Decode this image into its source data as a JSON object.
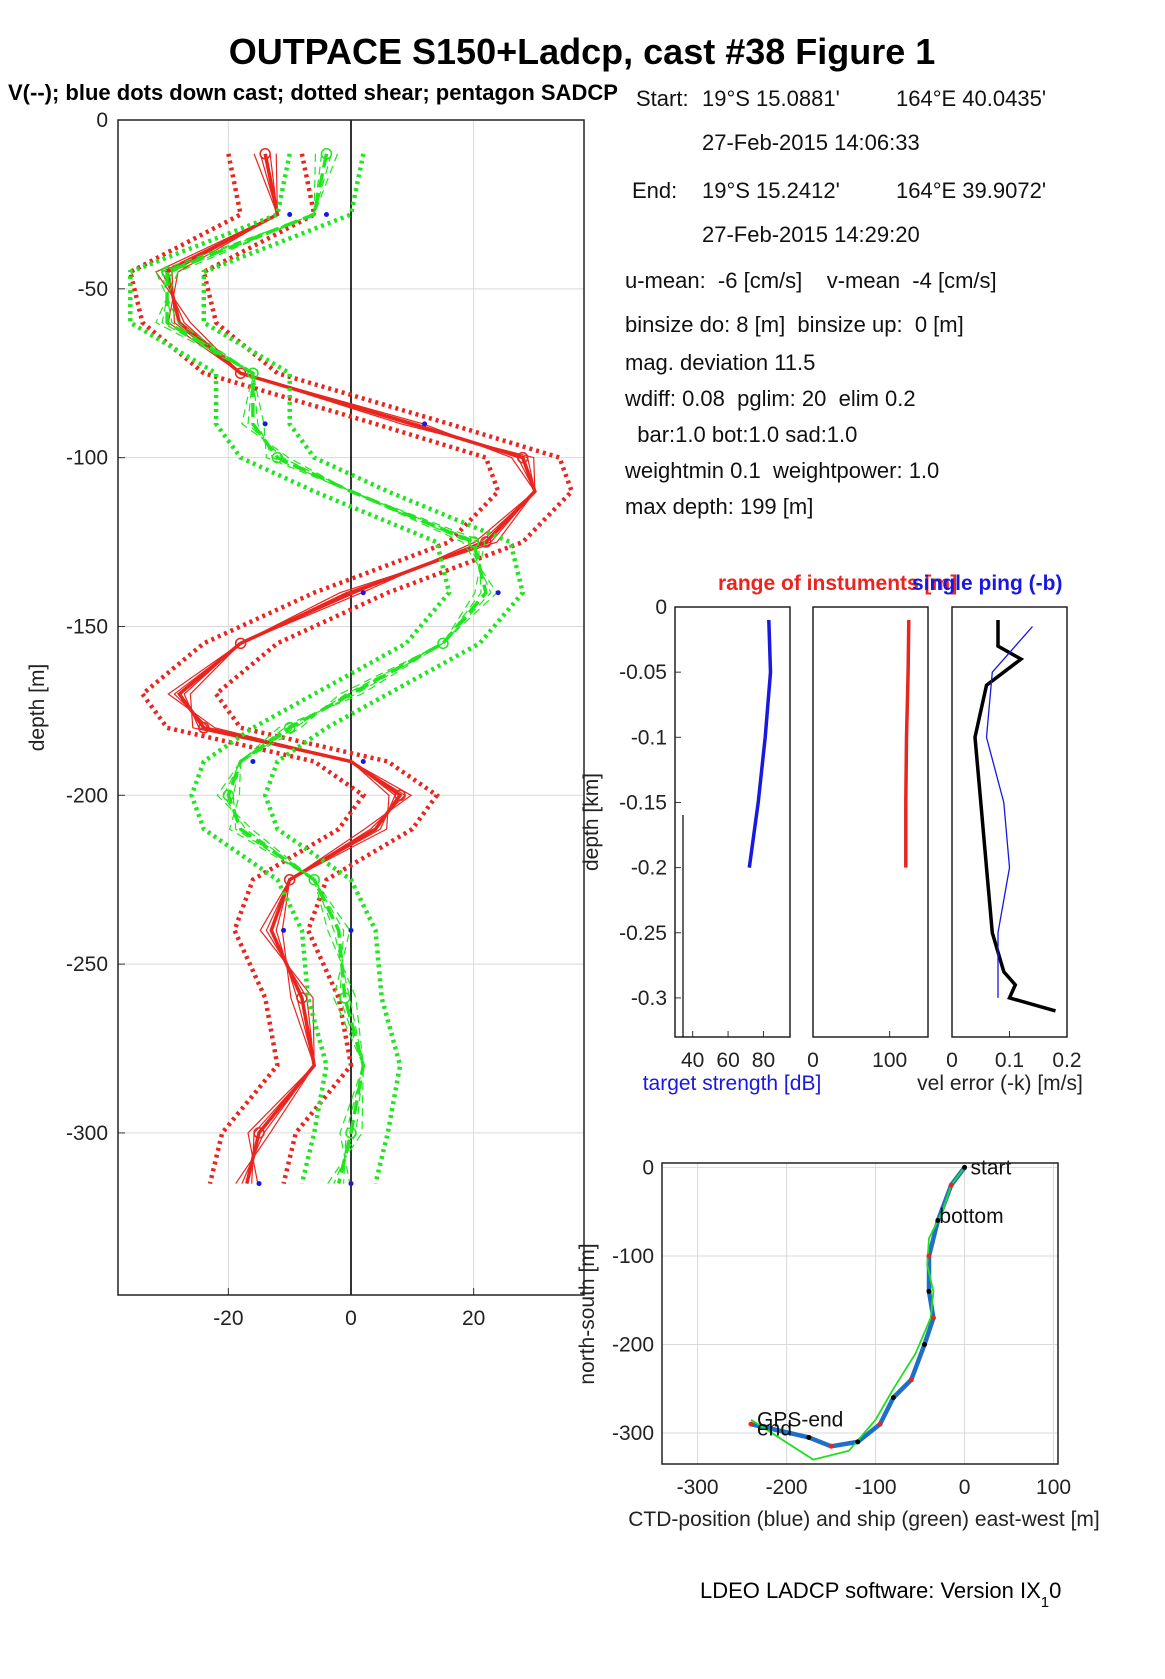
{
  "figure": {
    "title": "OUTPACE S150+Ladcp, cast #38  Figure 1",
    "subtitle": "V(--); blue dots down cast; dotted shear; pentagon SADCP",
    "footer": "LDEO LADCP software: Version IX",
    "footer_sub": "1",
    "footer_tail": "0"
  },
  "info": {
    "start_label": "Start:",
    "start_lat": "19°S 15.0881'",
    "start_lon": "164°E 40.0435'",
    "start_time": "27-Feb-2015 14:06:33",
    "end_label": "End:",
    "end_lat": "19°S 15.2412'",
    "end_lon": "164°E 39.9072'",
    "end_time": "27-Feb-2015 14:29:20",
    "means": "u-mean:  -6 [cm/s]    v-mean  -4 [cm/s]",
    "binsize": "binsize do: 8 [m]  binsize up:  0 [m]",
    "magdev": "mag. deviation 11.5",
    "wdiff": "wdiff: 0.08  pglim: 20  elim 0.2",
    "bar": "  bar:1.0 bot:1.0 sad:1.0",
    "weight": "weightmin 0.1  weightpower: 1.0",
    "maxdepth": "max depth: 199 [m]"
  },
  "colors": {
    "u": "#e8251f",
    "v": "#1fe61f",
    "downcast": "#1818e0",
    "ctd": "#1f6fc8",
    "ship": "#22dd22",
    "grid": "#d9d9d9"
  },
  "chart_data": [
    {
      "type": "line",
      "id": "profile",
      "ylabel": "depth [m]",
      "xlim": [
        -38,
        38
      ],
      "ylim": [
        -348,
        0
      ],
      "xticks": [
        -20,
        0,
        20
      ],
      "yticks": [
        0,
        -50,
        -100,
        -150,
        -200,
        -250,
        -300
      ],
      "grid": true,
      "series": [
        {
          "name": "u",
          "color_key": "u",
          "depth": [
            -10,
            -28,
            -45,
            -60,
            -75,
            -90,
            -100,
            -110,
            -125,
            -140,
            -155,
            -170,
            -180,
            -190,
            -200,
            -210,
            -225,
            -240,
            -260,
            -280,
            -300,
            -315
          ],
          "values": [
            -14,
            -12,
            -30,
            -28,
            -18,
            10,
            28,
            30,
            22,
            0,
            -18,
            -28,
            -24,
            0,
            8,
            4,
            -10,
            -13,
            -8,
            -6,
            -15,
            -17
          ]
        },
        {
          "name": "v",
          "color_key": "v",
          "depth": [
            -10,
            -28,
            -45,
            -60,
            -75,
            -90,
            -100,
            -110,
            -125,
            -140,
            -155,
            -170,
            -180,
            -190,
            -200,
            -210,
            -225,
            -240,
            -260,
            -280,
            -300,
            -315
          ],
          "values": [
            -4,
            -6,
            -30,
            -30,
            -16,
            -16,
            -12,
            0,
            20,
            22,
            15,
            0,
            -10,
            -18,
            -20,
            -18,
            -6,
            -2,
            -1,
            2,
            0,
            -2
          ]
        }
      ]
    },
    {
      "type": "line",
      "id": "target-strength",
      "xlabel": "target strength [dB]",
      "ylabel": "depth [km]",
      "xlim": [
        30,
        95
      ],
      "ylim": [
        -0.33,
        0
      ],
      "xticks": [
        40,
        60,
        80
      ],
      "yticks": [
        0,
        -0.05,
        -0.1,
        -0.15,
        -0.2,
        -0.25,
        -0.3
      ],
      "series": [
        {
          "name": "",
          "color_key": "downcast",
          "depth": [
            -0.01,
            -0.05,
            -0.1,
            -0.15,
            -0.2
          ],
          "values": [
            83,
            84,
            81,
            77,
            72
          ]
        }
      ]
    },
    {
      "type": "line",
      "id": "range",
      "title": "range of instuments [m]",
      "xlim": [
        0,
        150
      ],
      "ylim": [
        -0.33,
        0
      ],
      "xticks": [
        0,
        100
      ],
      "series": [
        {
          "name": "",
          "color_key": "u",
          "depth": [
            -0.01,
            -0.05,
            -0.1,
            -0.15,
            -0.2
          ],
          "values": [
            125,
            124,
            122,
            121,
            121
          ]
        }
      ]
    },
    {
      "type": "line",
      "id": "vel-error",
      "title": "single ping (-b)",
      "xlabel": "vel error (-k) [m/s]",
      "xlim": [
        0,
        0.2
      ],
      "ylim": [
        -0.33,
        0
      ],
      "xticks": [
        0,
        0.1,
        0.2
      ],
      "series": [
        {
          "name": "",
          "color_key": "black",
          "depth": [
            -0.01,
            -0.03,
            -0.04,
            -0.06,
            -0.1,
            -0.15,
            -0.2,
            -0.25,
            -0.28,
            -0.29,
            -0.3,
            -0.31
          ],
          "values": [
            0.08,
            0.08,
            0.12,
            0.06,
            0.04,
            0.05,
            0.06,
            0.07,
            0.09,
            0.11,
            0.1,
            0.18
          ]
        },
        {
          "name": "",
          "color_key": "downcast",
          "depth": [
            -0.015,
            -0.05,
            -0.1,
            -0.15,
            -0.2,
            -0.25,
            -0.3
          ],
          "values": [
            0.14,
            0.07,
            0.06,
            0.09,
            0.1,
            0.08,
            0.08
          ]
        }
      ]
    },
    {
      "type": "line",
      "id": "track",
      "xlabel": "CTD-position (blue) and ship (green) east-west [m]",
      "ylabel": "north-south [m]",
      "xlim": [
        -340,
        105
      ],
      "ylim": [
        -335,
        5
      ],
      "xticks": [
        -300,
        -200,
        -100,
        0,
        100
      ],
      "yticks": [
        0,
        -100,
        -200,
        -300
      ],
      "grid": true,
      "annotations": [
        {
          "text": "start",
          "x": 0,
          "y": 0
        },
        {
          "text": "bottom",
          "x": -35,
          "y": -55
        },
        {
          "text": "GPS-end",
          "x": -240,
          "y": -285
        },
        {
          "text": "end",
          "x": -240,
          "y": -295
        }
      ],
      "series": [
        {
          "name": "",
          "color_key": "ctd",
          "x": [
            0,
            -15,
            -30,
            -40,
            -40,
            -35,
            -45,
            -60,
            -80,
            -95,
            -120,
            -150,
            -175,
            -240
          ],
          "y": [
            0,
            -20,
            -60,
            -100,
            -140,
            -170,
            -200,
            -240,
            -260,
            -290,
            -310,
            -315,
            -305,
            -290
          ]
        },
        {
          "name": "",
          "color_key": "ship",
          "x": [
            0,
            -15,
            -25,
            -40,
            -42,
            -35,
            -38,
            -55,
            -80,
            -100,
            -130,
            -170,
            -240
          ],
          "y": [
            0,
            -20,
            -50,
            -80,
            -110,
            -140,
            -170,
            -210,
            -250,
            -285,
            -320,
            -330,
            -285
          ]
        }
      ]
    }
  ]
}
